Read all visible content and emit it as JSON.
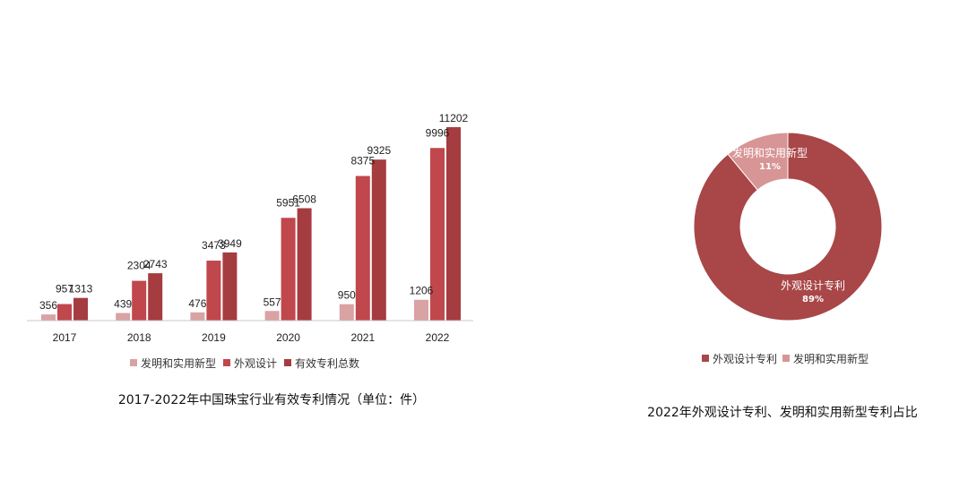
{
  "chart_data": [
    {
      "type": "bar",
      "title": "2017-2022年中国珠宝行业有效专利情况（单位：件）",
      "categories": [
        "2017",
        "2018",
        "2019",
        "2020",
        "2021",
        "2022"
      ],
      "series": [
        {
          "name": "发明和实用新型",
          "color": "#d9a2a3",
          "values": [
            356,
            439,
            476,
            557,
            950,
            1206
          ]
        },
        {
          "name": "外观设计",
          "color": "#c0474c",
          "values": [
            957,
            2304,
            3473,
            5951,
            8375,
            9996
          ]
        },
        {
          "name": "有效专利总数",
          "color": "#a53c3f",
          "values": [
            1313,
            2743,
            3949,
            6508,
            9325,
            11202
          ]
        }
      ],
      "ylim": [
        0,
        12000
      ],
      "grid": false,
      "legend": "bottom"
    },
    {
      "type": "pie",
      "title": "2022年外观设计专利、发明和实用新型专利占比",
      "slices": [
        {
          "label": "外观设计专利",
          "value": 89,
          "pct_label": "89%",
          "color": "#a94647"
        },
        {
          "label": "发明和实用新型",
          "value": 11,
          "pct_label": "11%",
          "color": "#d89595"
        }
      ],
      "legend": "bottom"
    }
  ]
}
